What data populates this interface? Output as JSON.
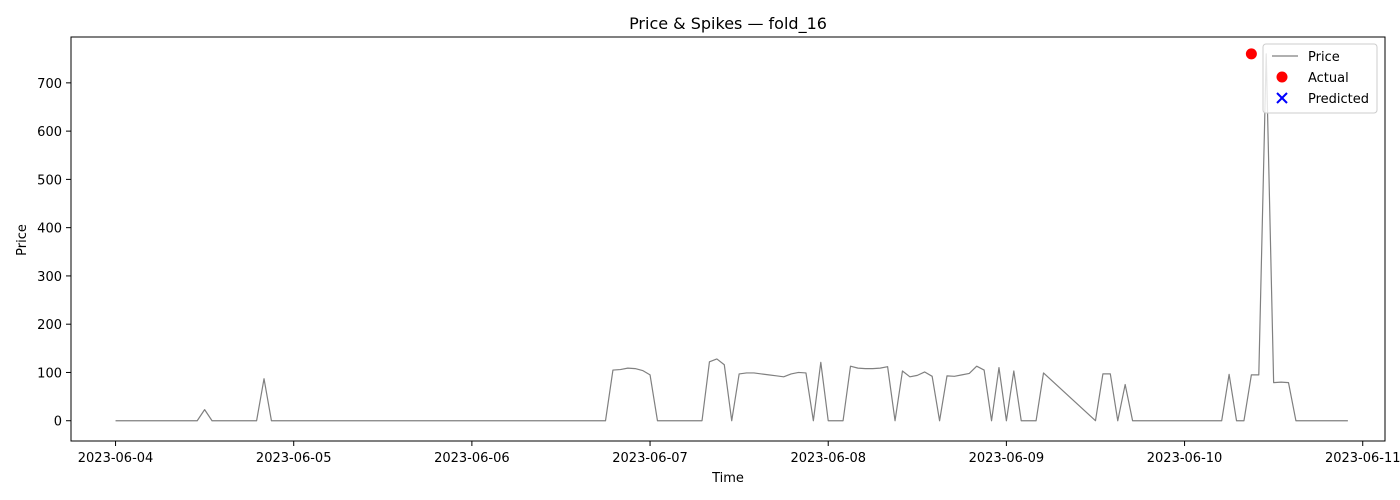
{
  "chart_data": {
    "type": "line",
    "title": "Price & Spikes — fold_16",
    "xlabel": "Time",
    "ylabel": "Price",
    "xlim": [
      "2023-06-03T18:00",
      "2023-06-11T03:00"
    ],
    "ylim": [
      -42,
      795
    ],
    "x_ticks": [
      "2023-06-04",
      "2023-06-05",
      "2023-06-06",
      "2023-06-07",
      "2023-06-08",
      "2023-06-09",
      "2023-06-10",
      "2023-06-11"
    ],
    "y_ticks": [
      0,
      100,
      200,
      300,
      400,
      500,
      600,
      700
    ],
    "grid": false,
    "legend_position": "top-right",
    "colors": {
      "price": "#808080",
      "actual": "#ff0000",
      "predicted": "#0000ff"
    },
    "series": [
      {
        "name": "Price",
        "kind": "line",
        "x": [
          "2023-06-04T00:00",
          "2023-06-04T11:00",
          "2023-06-04T12:00",
          "2023-06-04T13:00",
          "2023-06-04T19:00",
          "2023-06-04T20:00",
          "2023-06-04T21:00",
          "2023-06-06T18:00",
          "2023-06-06T19:00",
          "2023-06-06T20:00",
          "2023-06-06T21:00",
          "2023-06-06T22:00",
          "2023-06-06T23:00",
          "2023-06-07T00:00",
          "2023-06-07T01:00",
          "2023-06-07T07:00",
          "2023-06-07T08:00",
          "2023-06-07T09:00",
          "2023-06-07T10:00",
          "2023-06-07T11:00",
          "2023-06-07T12:00",
          "2023-06-07T13:00",
          "2023-06-07T14:00",
          "2023-06-07T15:00",
          "2023-06-07T16:00",
          "2023-06-07T17:00",
          "2023-06-07T18:00",
          "2023-06-07T19:00",
          "2023-06-07T20:00",
          "2023-06-07T21:00",
          "2023-06-07T22:00",
          "2023-06-07T23:00",
          "2023-06-08T00:00",
          "2023-06-08T01:00",
          "2023-06-08T02:00",
          "2023-06-08T03:00",
          "2023-06-08T04:00",
          "2023-06-08T05:00",
          "2023-06-08T06:00",
          "2023-06-08T07:00",
          "2023-06-08T08:00",
          "2023-06-08T09:00",
          "2023-06-08T10:00",
          "2023-06-08T11:00",
          "2023-06-08T12:00",
          "2023-06-08T13:00",
          "2023-06-08T14:00",
          "2023-06-08T15:00",
          "2023-06-08T16:00",
          "2023-06-08T17:00",
          "2023-06-08T18:00",
          "2023-06-08T19:00",
          "2023-06-08T20:00",
          "2023-06-08T21:00",
          "2023-06-08T22:00",
          "2023-06-08T23:00",
          "2023-06-09T00:00",
          "2023-06-09T01:00",
          "2023-06-09T02:00",
          "2023-06-09T03:00",
          "2023-06-09T04:00",
          "2023-06-09T05:00",
          "2023-06-09T12:00",
          "2023-06-09T13:00",
          "2023-06-09T14:00",
          "2023-06-09T15:00",
          "2023-06-09T16:00",
          "2023-06-09T17:00",
          "2023-06-10T05:00",
          "2023-06-10T06:00",
          "2023-06-10T07:00",
          "2023-06-10T08:00",
          "2023-06-10T09:00",
          "2023-06-10T10:00",
          "2023-06-10T11:00",
          "2023-06-10T12:00",
          "2023-06-10T13:00",
          "2023-06-10T14:00",
          "2023-06-10T15:00",
          "2023-06-10T22:00"
        ],
        "y": [
          0,
          0,
          23,
          0,
          0,
          87,
          0,
          0,
          105,
          106,
          109,
          108,
          104,
          95,
          0,
          0,
          122,
          128,
          116,
          0,
          97,
          99,
          99,
          97,
          95,
          93,
          91,
          97,
          100,
          99,
          0,
          121,
          0,
          0,
          0,
          113,
          109,
          108,
          108,
          109,
          112,
          0,
          103,
          91,
          94,
          101,
          92,
          0,
          93,
          92,
          95,
          98,
          113,
          105,
          0,
          110,
          0,
          103,
          0,
          0,
          0,
          99,
          0,
          97,
          97,
          0,
          75,
          0,
          0,
          96,
          0,
          0,
          95,
          95,
          760,
          79,
          80,
          79,
          0,
          0
        ]
      },
      {
        "name": "Actual",
        "kind": "scatter",
        "x": [
          "2023-06-10T09:00"
        ],
        "y": [
          760
        ]
      },
      {
        "name": "Predicted",
        "kind": "scatter",
        "x": [],
        "y": []
      }
    ]
  }
}
